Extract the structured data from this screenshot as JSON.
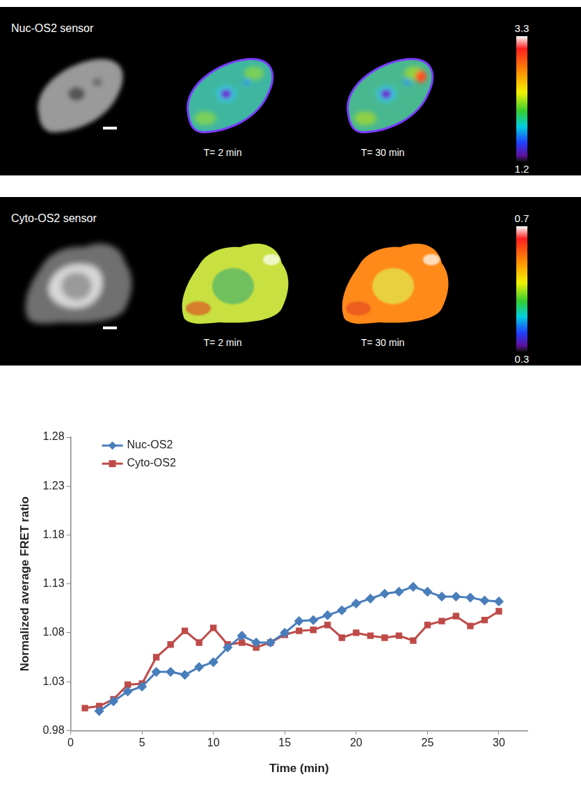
{
  "panels": [
    {
      "title": "Nuc-OS2 sensor",
      "frames": [
        "T= 2 min",
        "T= 30 min"
      ],
      "colorbar": {
        "range": [
          1.2,
          3.3
        ],
        "ticks": [
          1.2,
          3.3
        ]
      }
    },
    {
      "title": "Cyto-OS2 sensor",
      "frames": [
        "T= 2 min",
        "T= 30 min"
      ],
      "colorbar": {
        "range": [
          0.3,
          0.7
        ],
        "ticks": [
          0.3,
          0.7
        ]
      }
    }
  ],
  "chart_data": {
    "type": "line",
    "xlabel": "Time (min)",
    "ylabel": "Normalized average FRET ratio",
    "x": [
      1,
      2,
      3,
      4,
      5,
      6,
      7,
      8,
      9,
      10,
      11,
      12,
      13,
      14,
      15,
      16,
      17,
      18,
      19,
      20,
      21,
      22,
      23,
      24,
      25,
      26,
      27,
      28,
      29,
      30
    ],
    "series": [
      {
        "name": "Nuc-OS2",
        "color": "#4a7ebb",
        "marker": "diamond",
        "values": [
          null,
          1.0,
          1.01,
          1.02,
          1.025,
          1.04,
          1.04,
          1.037,
          1.045,
          1.05,
          1.065,
          1.077,
          1.07,
          1.07,
          1.08,
          1.092,
          1.093,
          1.098,
          1.103,
          1.11,
          1.115,
          1.12,
          1.122,
          1.127,
          1.122,
          1.117,
          1.117,
          1.116,
          1.113,
          1.112
        ]
      },
      {
        "name": "Cyto-OS2",
        "color": "#be4b48",
        "marker": "square",
        "values": [
          1.003,
          1.005,
          1.012,
          1.027,
          1.028,
          1.055,
          1.068,
          1.082,
          1.07,
          1.085,
          1.068,
          1.07,
          1.065,
          1.07,
          1.078,
          1.082,
          1.083,
          1.088,
          1.075,
          1.08,
          1.077,
          1.075,
          1.077,
          1.072,
          1.088,
          1.092,
          1.097,
          1.087,
          1.093,
          1.102
        ]
      }
    ],
    "xlim": [
      0,
      32
    ],
    "xticks": [
      0,
      5,
      10,
      15,
      20,
      25,
      30
    ],
    "ylim": [
      0.98,
      1.28
    ],
    "yticks": [
      0.98,
      1.03,
      1.08,
      1.13,
      1.18,
      1.23,
      1.28
    ],
    "grid": false,
    "legend": "upper left"
  }
}
